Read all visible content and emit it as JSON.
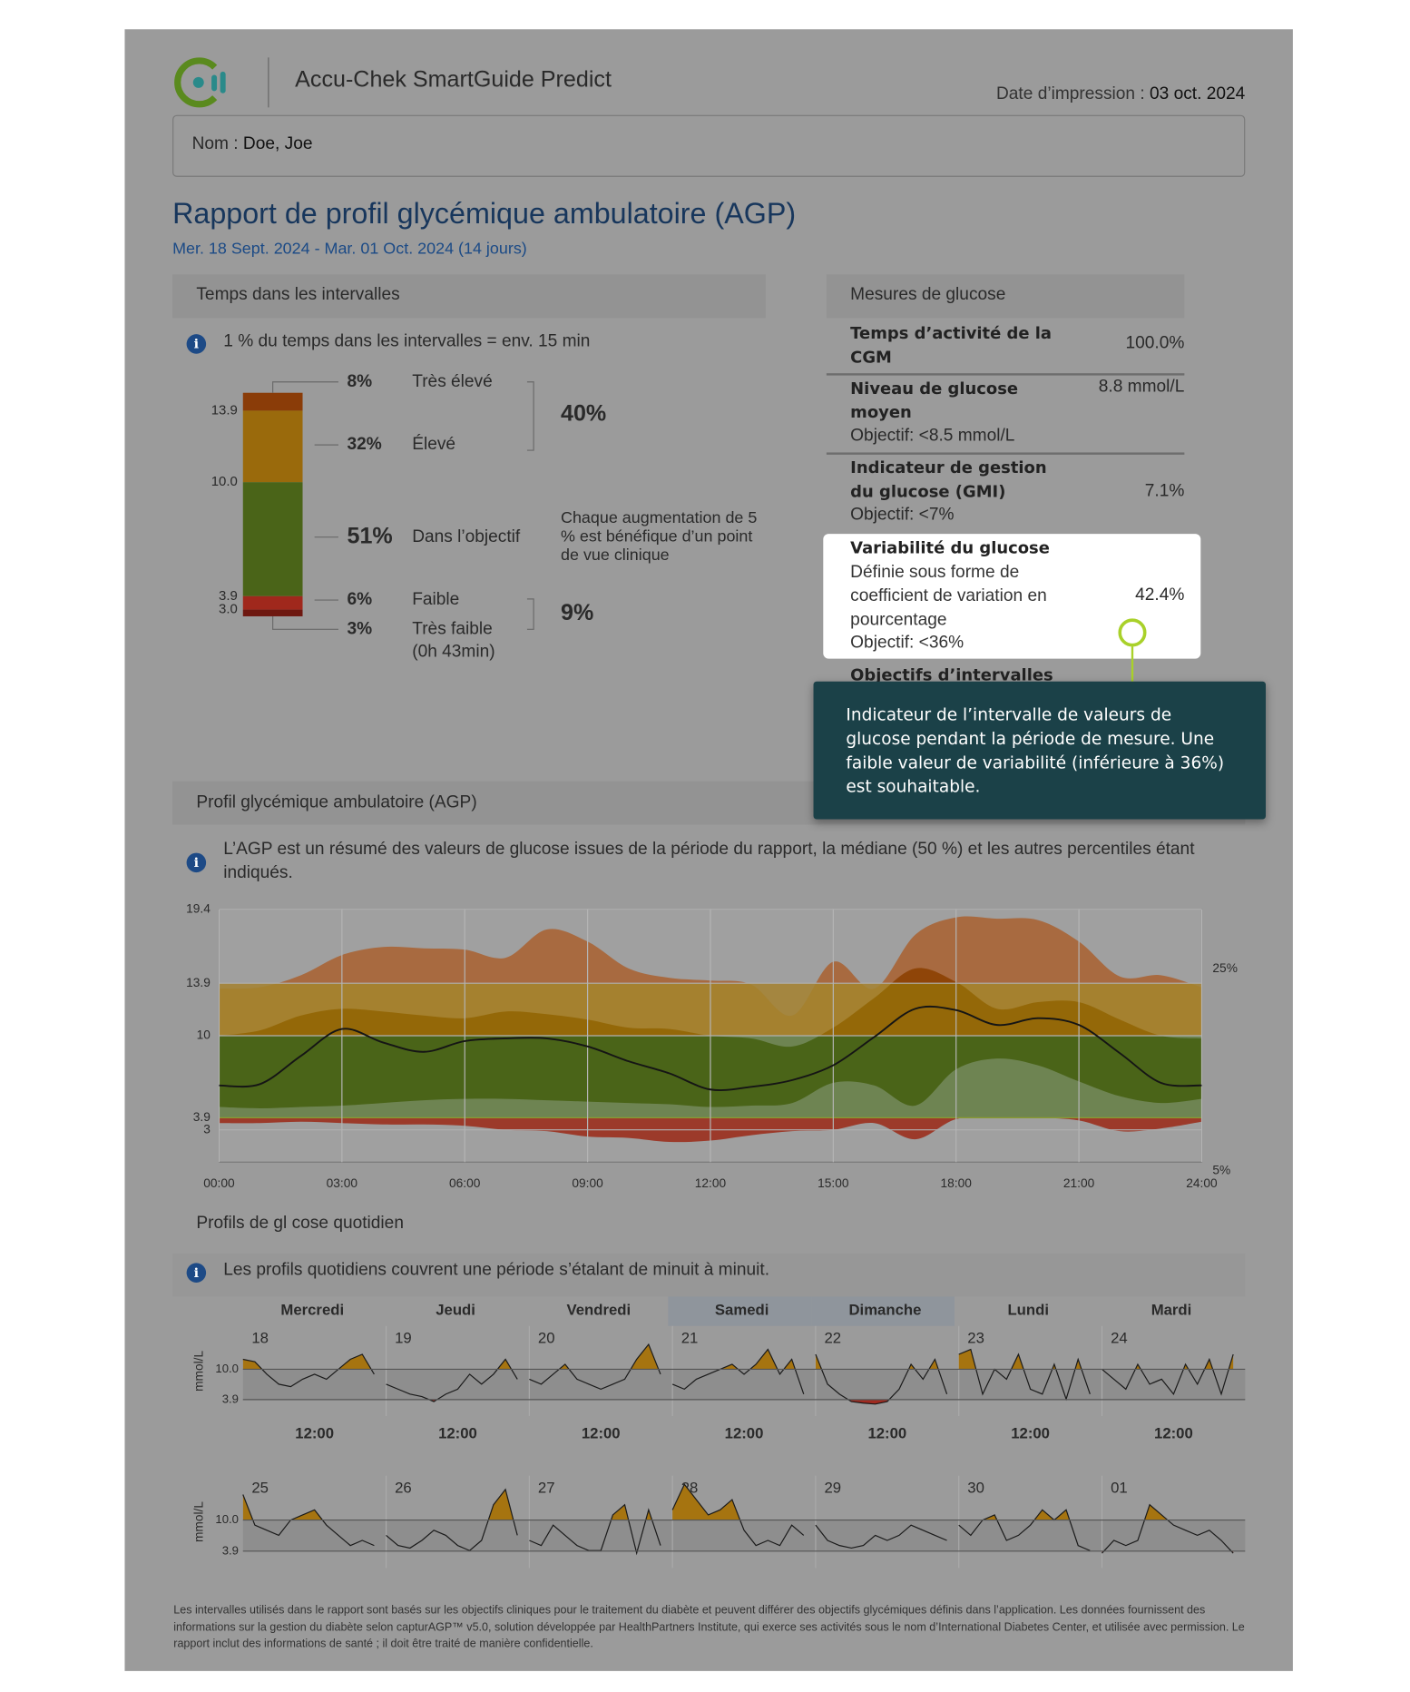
{
  "header": {
    "app_name": "Accu-Chek SmartGuide Predict",
    "print_date_label": "Date d’impression :",
    "print_date": "03 oct. 2024",
    "name_label": "Nom :",
    "name": "Doe, Joe"
  },
  "report": {
    "title": "Rapport de profil glycémique ambulatoire (AGP)",
    "period": "Mer. 18 Sept. 2024 - Mar. 01 Oct. 2024 (14 jours)"
  },
  "glucose_metrics": {
    "title": "Mesures de glucose",
    "rows": [
      {
        "label": "Temps d’activité de la CGM",
        "value": "100.0%"
      },
      {
        "label": "Niveau de glucose moyen",
        "value": "8.8 mmol/L",
        "target": "Objectif: <8.5 mmol/L"
      },
      {
        "label": "Indicateur de gestion du glucose (GMI)",
        "value": "7.1%",
        "target": "Objectif: <7%"
      },
      {
        "label": "Variabilité du glucose",
        "description": "Définie sous forme de coefficient de variation en pourcentage",
        "value": "42.4%",
        "target": "Objectif: <36%"
      },
      {
        "label": "Objectifs d’intervalles"
      }
    ]
  },
  "tooltip": {
    "text": "Indicateur de l’intervalle de valeurs de glucose pendant la période de mesure. Une faible valeur de variabilité (inférieure à 36%) est souhaitable."
  },
  "footer": {
    "text": "Les intervalles utilisés dans le rapport sont basés sur les objectifs cliniques pour le traitement du diabète et peuvent différer des objectifs glycémiques définis dans l’application. Les données fournissent des informations sur la gestion du diabète selon capturAGP™ v5.0, solution développée par HealthPartners Institute, qui exerce ses activités sous le nom d’International Diabetes Center, et utilisée avec permission. Le rapport inclut des informations de santé ; il doit être traité de manière confidentielle."
  },
  "chart_data": [
    {
      "type": "stacked_bar",
      "title": "Temps dans les intervalles",
      "info": "1 % du temps dans les intervalles = env. 15 min",
      "series": [
        {
          "name": "Très élevé",
          "color": "#8a3c08",
          "values": [
            8
          ],
          "value_labels": [
            "8%"
          ]
        },
        {
          "name": "Élevé",
          "color": "#9a6a0c",
          "values": [
            32
          ],
          "value_labels": [
            "32%"
          ]
        },
        {
          "name": "Dans l’objectif",
          "color": "#4a6418",
          "values": [
            51
          ],
          "value_labels": [
            "51%"
          ]
        },
        {
          "name": "Faible",
          "color": "#a0281c",
          "values": [
            6
          ],
          "value_labels": [
            "6%"
          ]
        },
        {
          "name": "Très faible",
          "color": "#6e1810",
          "values": [
            3
          ],
          "value_labels": [
            "3%"
          ],
          "duration": "(0h 43min)"
        }
      ],
      "thresholds": [
        13.9,
        {
          "value": 10,
          "label": "10.0"
        },
        3.9,
        {
          "value": 3,
          "label": "3.0"
        }
      ],
      "groups": [
        {
          "value": 40,
          "label": "40%"
        },
        {
          "value": 9,
          "label": "9%"
        }
      ],
      "annotation": "Chaque augmentation de 5 % est bénéfique d’un point de vue clinique"
    },
    {
      "type": "agp",
      "title": "Profil glycémique ambulatoire (AGP)",
      "info": "L’AGP est un résumé des valeurs de glucose issues de la période du rapport, la médiane (50 %) et les autres percentiles étant indiqués.",
      "x": [
        0,
        1,
        2,
        3,
        4,
        5,
        6,
        7,
        8,
        9,
        10,
        11,
        12,
        13,
        14,
        15,
        16,
        17,
        18,
        19,
        20,
        21,
        22,
        23,
        24
      ],
      "xlim": [
        0,
        24
      ],
      "xticks": [
        {
          "value": 0,
          "label": "00:00"
        },
        {
          "value": 3,
          "label": "03:00"
        },
        {
          "value": 6,
          "label": "06:00"
        },
        {
          "value": 9,
          "label": "09:00"
        },
        {
          "value": 12,
          "label": "12:00"
        },
        {
          "value": 15,
          "label": "15:00"
        },
        {
          "value": 18,
          "label": "18:00"
        },
        {
          "value": 21,
          "label": "21:00"
        },
        {
          "value": 24,
          "label": "24:00"
        }
      ],
      "ylim": [
        0.6,
        19.4
      ],
      "yticks": [
        3,
        3.9,
        10,
        13.9,
        19.4
      ],
      "grid": true,
      "zones": [
        3.9,
        10,
        13.9
      ],
      "percentiles": {
        "p5": [
          3.5,
          3.5,
          3.6,
          3.5,
          3.4,
          3.4,
          3.3,
          3.0,
          2.9,
          2.5,
          2.4,
          2.1,
          2.2,
          2.6,
          2.9,
          3.0,
          3.5,
          2.3,
          3.8,
          3.9,
          3.9,
          3.7,
          2.9,
          3.1,
          3.6
        ],
        "p25": [
          4.7,
          4.6,
          4.7,
          4.8,
          5.0,
          5.2,
          5.3,
          5.3,
          5.2,
          5.1,
          5.0,
          4.9,
          4.7,
          4.8,
          5.0,
          6.5,
          6.3,
          4.8,
          7.5,
          8.3,
          7.8,
          6.6,
          5.5,
          5.0,
          5.3
        ],
        "p50": [
          6.3,
          6.4,
          8.5,
          10.5,
          9.5,
          8.8,
          9.6,
          9.8,
          9.8,
          9.2,
          8.1,
          7.2,
          6.0,
          6.2,
          6.7,
          7.8,
          9.9,
          12.0,
          11.9,
          10.8,
          11.3,
          10.8,
          8.7,
          6.5,
          6.3
        ],
        "p75": [
          10.0,
          10.4,
          11.5,
          12.0,
          11.8,
          11.5,
          11.3,
          11.8,
          11.6,
          11.2,
          10.6,
          10.5,
          10.0,
          9.8,
          9.2,
          10.6,
          12.8,
          15.0,
          14.0,
          12.0,
          12.5,
          12.5,
          11.2,
          10.0,
          9.8
        ],
        "p95": [
          13.5,
          13.6,
          14.5,
          16.0,
          16.6,
          16.5,
          16.4,
          15.8,
          17.9,
          17.0,
          15.0,
          14.3,
          14.1,
          13.8,
          11.5,
          15.5,
          13.5,
          17.5,
          18.8,
          18.7,
          18.6,
          17.0,
          14.4,
          14.5,
          13.6
        ]
      },
      "outer_colors": [
        "#9c3a2a",
        "#6e8452",
        "#a5812f",
        "#a86a40"
      ],
      "inner_colors": [
        "#8c2414",
        "#4a6418",
        "#946808",
        "#8f4508"
      ],
      "median_color": "#151515",
      "side_labels": [
        "25%",
        "5%"
      ]
    },
    {
      "type": "daily_profiles",
      "title": "Profils de gl cose quotidien",
      "info": "Les profils quotidiens couvrent une période s’étalant de minuit à minuit.",
      "y_label": "mmol/L",
      "ylim": [
        0.6,
        18.7
      ],
      "yticks": [
        {
          "value": 10,
          "label": "10.0"
        },
        3.9
      ],
      "x": [
        0,
        2,
        4,
        6,
        8,
        10,
        12,
        14,
        16,
        18,
        20,
        22
      ],
      "xlim": [
        0,
        24
      ],
      "xticks": [
        {
          "value": 12,
          "label": "12:00"
        }
      ],
      "weekdays": [
        "Mercredi",
        "Jeudi",
        "Vendredi",
        "Samedi",
        "Dimanche",
        "Lundi",
        "Mardi"
      ],
      "shaded_columns": [
        3,
        4
      ],
      "above_color": "#a67410",
      "below_color": "#a02a20",
      "line_color": "#1a1a1a",
      "days": [
        {
          "label": "18",
          "values": [
            12,
            11.5,
            9,
            7,
            6.5,
            8,
            9,
            8,
            10,
            12,
            13,
            9
          ]
        },
        {
          "label": "19",
          "values": [
            7,
            6,
            5,
            4.5,
            3.5,
            5,
            6,
            9,
            7,
            9,
            12,
            8
          ]
        },
        {
          "label": "20",
          "values": [
            8,
            7,
            9,
            11,
            8,
            7,
            6,
            7,
            8,
            12,
            15,
            9
          ]
        },
        {
          "label": "21",
          "values": [
            7,
            6,
            8,
            9,
            10,
            11,
            9,
            11,
            14,
            9,
            12,
            5
          ]
        },
        {
          "label": "22",
          "values": [
            13,
            7,
            5,
            3.5,
            3.2,
            3.0,
            3.5,
            6,
            11,
            8,
            12,
            5
          ]
        },
        {
          "label": "23",
          "values": [
            13,
            14,
            5,
            10,
            8,
            13,
            6,
            5,
            11,
            4,
            12,
            5
          ]
        },
        {
          "label": "24",
          "values": [
            10,
            8,
            6,
            11,
            7,
            8,
            5,
            11,
            7,
            12,
            5,
            13
          ]
        },
        {
          "label": "25",
          "values": [
            15,
            9,
            8,
            7,
            10,
            11,
            12,
            9,
            7,
            5,
            6,
            5
          ]
        },
        {
          "label": "26",
          "values": [
            7,
            5,
            4.5,
            6,
            8,
            7,
            5,
            4,
            6,
            13,
            16,
            7
          ]
        },
        {
          "label": "27",
          "values": [
            6,
            5,
            9,
            7,
            5,
            4,
            4,
            11,
            13,
            3.5,
            12,
            5
          ]
        },
        {
          "label": "28",
          "values": [
            12,
            17,
            14,
            11,
            12,
            14,
            8,
            5,
            6,
            5,
            9,
            7
          ]
        },
        {
          "label": "29",
          "values": [
            9,
            6,
            5,
            4.5,
            5,
            7,
            6,
            7,
            9,
            8,
            7,
            6
          ]
        },
        {
          "label": "30",
          "values": [
            9,
            7,
            10,
            11,
            6,
            7,
            9,
            12,
            10,
            12,
            5,
            4
          ]
        },
        {
          "label": "01",
          "values": [
            3.5,
            6,
            5,
            6,
            13,
            11,
            9,
            8,
            7,
            8,
            6,
            3.5
          ]
        }
      ]
    }
  ]
}
